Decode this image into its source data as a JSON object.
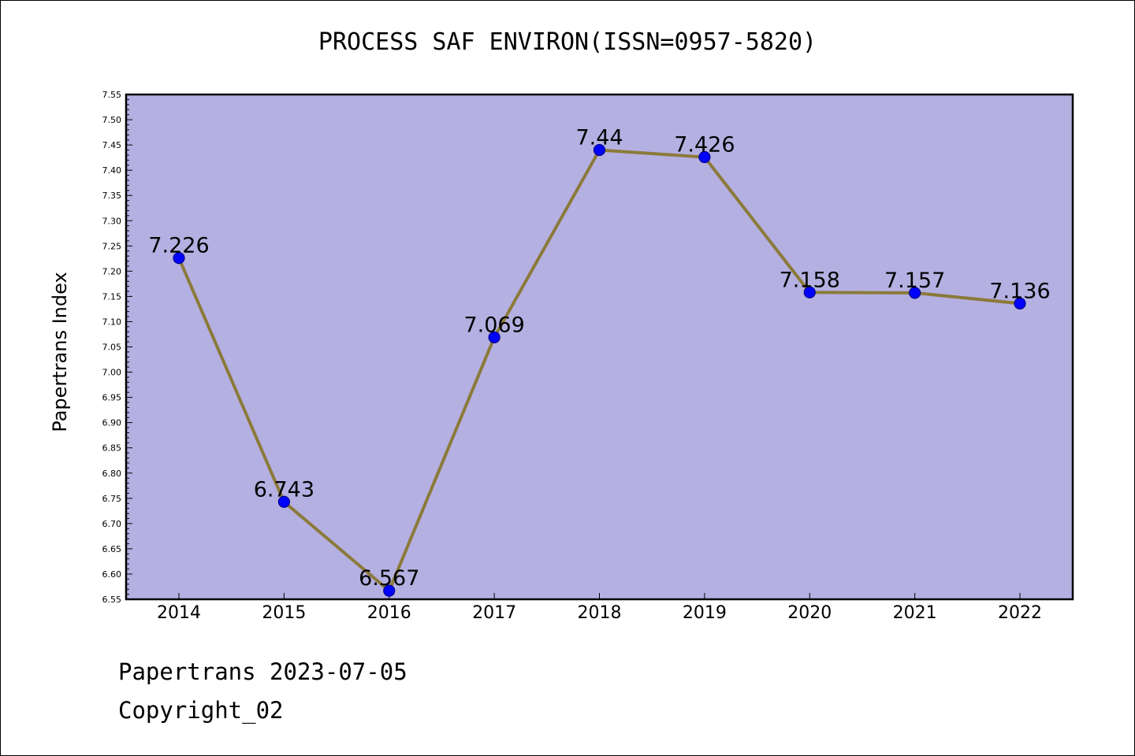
{
  "chart_data": {
    "type": "line",
    "title": "PROCESS SAF ENVIRON(ISSN=0957-5820)",
    "ylabel": "Papertrans Index",
    "xlabel": "",
    "categories": [
      "2014",
      "2015",
      "2016",
      "2017",
      "2018",
      "2019",
      "2020",
      "2021",
      "2022"
    ],
    "series": [
      {
        "values": [
          7.226,
          6.743,
          6.567,
          7.069,
          7.44,
          7.426,
          7.158,
          7.157,
          7.136
        ],
        "labels": [
          "7.226",
          "6.743",
          "6.567",
          "7.069",
          "7.44",
          "7.426",
          "7.158",
          "7.157",
          "7.136"
        ]
      }
    ],
    "ylim": [
      6.55,
      7.55
    ],
    "yticks": [
      "6.55",
      "6.60",
      "6.65",
      "6.70",
      "6.75",
      "6.80",
      "6.85",
      "6.90",
      "6.95",
      "7.00",
      "7.05",
      "7.10",
      "7.15",
      "7.20",
      "7.25",
      "7.30",
      "7.35",
      "7.40",
      "7.45",
      "7.50",
      "7.55"
    ],
    "grid": false,
    "legend": "none",
    "colors": {
      "plot_background": "#b5b0e2",
      "line": "#8b7a3a",
      "marker": "#0000ff",
      "marker_edge": "#00008b"
    }
  },
  "footer": {
    "line1": "Papertrans 2023-07-05",
    "line2": "Copyright_02"
  }
}
